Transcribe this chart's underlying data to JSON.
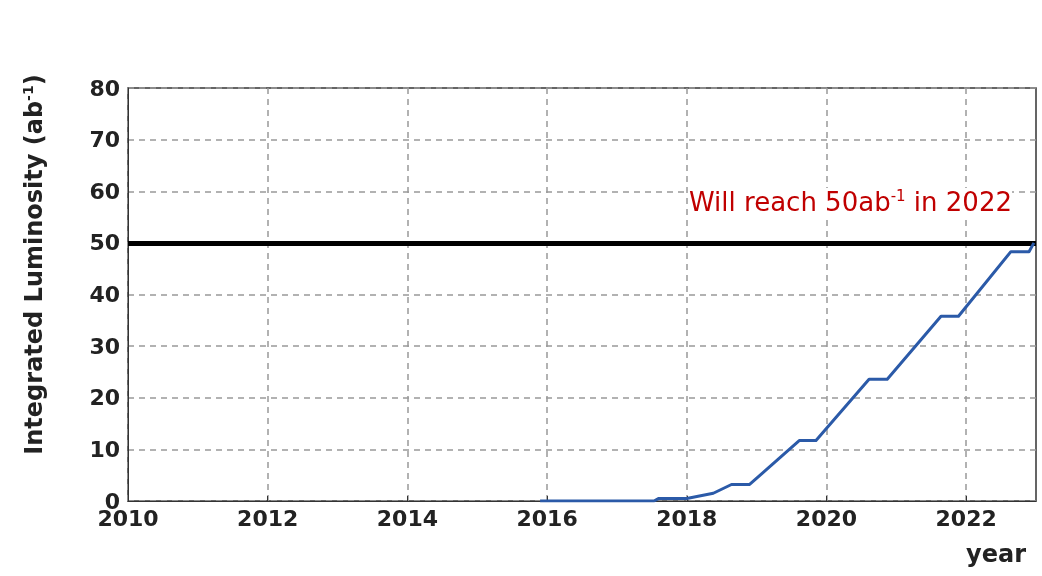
{
  "chart_data": {
    "type": "line",
    "xlabel": "year",
    "ylabel": "Integrated Luminosity (ab$^{-1}$)",
    "x": [
      2015.9,
      2017.53,
      2017.6,
      2018.0,
      2018.38,
      2018.64,
      2018.9,
      2019.61,
      2019.85,
      2020.61,
      2020.87,
      2021.64,
      2021.89,
      2022.64,
      2022.9,
      2022.97
    ],
    "series": [
      {
        "color": "#2b5aa8",
        "values": [
          0,
          0,
          0.5,
          0.5,
          1.5,
          3.2,
          3.2,
          11.7,
          11.7,
          23.6,
          23.6,
          35.8,
          35.8,
          48.3,
          48.3,
          50
        ]
      }
    ],
    "xlim": [
      2010,
      2023
    ],
    "xticks": [
      2010,
      2012,
      2014,
      2016,
      2018,
      2020,
      2022
    ],
    "ylim": [
      0,
      80
    ],
    "yticks": [
      0,
      10,
      20,
      30,
      40,
      50,
      60,
      70,
      80
    ],
    "ref_lines": [
      {
        "axis": "y",
        "value": 50,
        "color": "#000000"
      }
    ],
    "annotations": [
      "Will reach 50ab$^{-1}$ in 2022"
    ],
    "grid": true,
    "marker": "none",
    "line_style": "solid"
  }
}
